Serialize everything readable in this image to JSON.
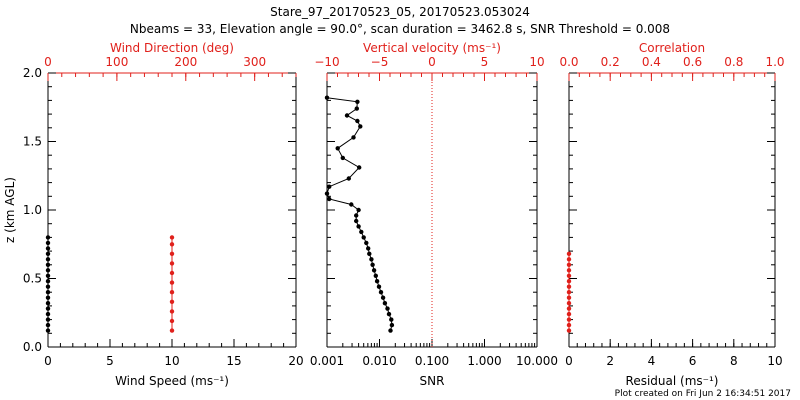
{
  "chart_data": {
    "title": "Stare_97_20170523_05, 20170523.053024",
    "subtitle": "Nbeams = 33, Elevation angle = 90.0°, scan duration = 3462.8 s, SNR Threshold = 0.008",
    "footer": "Plot created on Fri Jun  2 16:34:51 2017",
    "ylabel": "z (km AGL)",
    "ylim": [
      0.0,
      2.0
    ],
    "yticks": [
      "0.0",
      "0.5",
      "1.0",
      "1.5",
      "2.0"
    ],
    "panels": [
      {
        "id": "wind",
        "type": "scatter",
        "xlabel": "Wind Speed (ms⁻¹)",
        "xlim": [
          0,
          20
        ],
        "xticks": [
          "0",
          "5",
          "10",
          "15",
          "20"
        ],
        "top_label": "Wind Direction (deg)",
        "top_xlim": [
          0,
          360
        ],
        "top_xticks": [
          "0",
          "100",
          "200",
          "300"
        ],
        "series": [
          {
            "name": "Wind Speed",
            "color": "#000000",
            "points": [
              [
                0,
                0.12
              ],
              [
                0,
                0.16
              ],
              [
                0,
                0.2
              ],
              [
                0,
                0.24
              ],
              [
                0,
                0.28
              ],
              [
                0,
                0.32
              ],
              [
                0,
                0.36
              ],
              [
                0,
                0.4
              ],
              [
                0,
                0.44
              ],
              [
                0,
                0.48
              ],
              [
                0,
                0.52
              ],
              [
                0,
                0.56
              ],
              [
                0,
                0.6
              ],
              [
                0,
                0.64
              ],
              [
                0,
                0.68
              ],
              [
                0,
                0.72
              ],
              [
                0,
                0.76
              ],
              [
                0,
                0.8
              ]
            ]
          },
          {
            "name": "Wind Direction",
            "color": "#e0201b",
            "axis": "top",
            "points": [
              [
                180,
                0.12
              ],
              [
                180,
                0.19
              ],
              [
                180,
                0.26
              ],
              [
                180,
                0.33
              ],
              [
                180,
                0.4
              ],
              [
                180,
                0.47
              ],
              [
                180,
                0.54
              ],
              [
                180,
                0.61
              ],
              [
                180,
                0.68
              ],
              [
                180,
                0.75
              ],
              [
                180,
                0.8
              ]
            ]
          }
        ]
      },
      {
        "id": "snr",
        "type": "line",
        "xlabel": "SNR",
        "xscale": "log",
        "xlim": [
          0.001,
          10.0
        ],
        "xticks": [
          "0.001",
          "0.010",
          "0.100",
          "1.000",
          "10.000"
        ],
        "top_label": "Vertical velocity (ms⁻¹)",
        "top_xlim": [
          -10,
          10
        ],
        "top_xticks": [
          "−10",
          "−5",
          "0",
          "5",
          "10"
        ],
        "zero_line": 0,
        "series": [
          {
            "name": "SNR",
            "color": "#000000",
            "points": [
              [
                0.0162,
                0.12
              ],
              [
                0.0172,
                0.16
              ],
              [
                0.0168,
                0.2
              ],
              [
                0.0152,
                0.24
              ],
              [
                0.0142,
                0.28
              ],
              [
                0.0127,
                0.32
              ],
              [
                0.0117,
                0.36
              ],
              [
                0.0107,
                0.4
              ],
              [
                0.0098,
                0.44
              ],
              [
                0.009,
                0.48
              ],
              [
                0.0085,
                0.52
              ],
              [
                0.0079,
                0.56
              ],
              [
                0.0074,
                0.6
              ],
              [
                0.007,
                0.64
              ],
              [
                0.0064,
                0.68
              ],
              [
                0.0061,
                0.72
              ],
              [
                0.0056,
                0.76
              ],
              [
                0.005,
                0.8
              ],
              [
                0.0045,
                0.84
              ],
              [
                0.004,
                0.88
              ],
              [
                0.0036,
                0.92
              ],
              [
                0.0036,
                0.96
              ],
              [
                0.004,
                1.0
              ],
              [
                0.0029,
                1.04
              ],
              [
                0.0011,
                1.08
              ],
              [
                0.001,
                1.12
              ],
              [
                0.0011,
                1.17
              ],
              [
                0.0026,
                1.23
              ],
              [
                0.0041,
                1.31
              ],
              [
                0.002,
                1.38
              ],
              [
                0.0016,
                1.45
              ],
              [
                0.0032,
                1.53
              ],
              [
                0.0043,
                1.61
              ],
              [
                0.0038,
                1.65
              ],
              [
                0.0024,
                1.69
              ],
              [
                0.0037,
                1.74
              ],
              [
                0.0038,
                1.79
              ],
              [
                0.001,
                1.82
              ]
            ]
          }
        ]
      },
      {
        "id": "residual",
        "type": "scatter",
        "xlabel": "Residual (ms⁻¹)",
        "xlim": [
          0,
          10
        ],
        "xticks": [
          "0",
          "2",
          "4",
          "6",
          "8",
          "10"
        ],
        "top_label": "Correlation",
        "top_xlim": [
          0.0,
          1.0
        ],
        "top_xticks": [
          "0.0",
          "0.2",
          "0.4",
          "0.6",
          "0.8",
          "1.0"
        ],
        "series": [
          {
            "name": "Correlation",
            "color": "#e0201b",
            "axis": "top",
            "points": [
              [
                0,
                0.12
              ],
              [
                0,
                0.16
              ],
              [
                0,
                0.2
              ],
              [
                0,
                0.24
              ],
              [
                0,
                0.28
              ],
              [
                0,
                0.32
              ],
              [
                0,
                0.36
              ],
              [
                0,
                0.4
              ],
              [
                0,
                0.44
              ],
              [
                0,
                0.48
              ],
              [
                0,
                0.52
              ],
              [
                0,
                0.56
              ],
              [
                0,
                0.6
              ],
              [
                0,
                0.64
              ],
              [
                0,
                0.68
              ]
            ]
          }
        ]
      }
    ]
  }
}
